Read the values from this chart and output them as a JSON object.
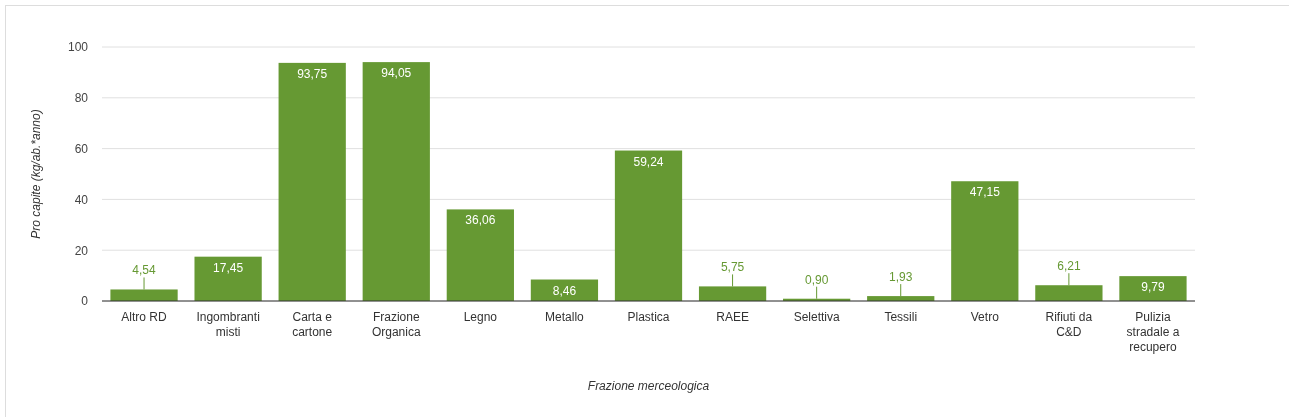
{
  "chart_data": {
    "type": "bar",
    "xlabel": "Frazione merceologica",
    "ylabel": "Pro capite (kg/ab.*anno)",
    "categories": [
      "Altro RD",
      "Ingombranti misti",
      "Carta e cartone",
      "Frazione Organica",
      "Legno",
      "Metallo",
      "Plastica",
      "RAEE",
      "Selettiva",
      "Tessili",
      "Vetro",
      "Rifiuti da C&D",
      "Pulizia stradale a recupero"
    ],
    "values": [
      4.54,
      17.45,
      93.75,
      94.05,
      36.06,
      8.46,
      59.24,
      5.75,
      0.9,
      1.93,
      47.15,
      6.21,
      9.79
    ],
    "value_labels": [
      "4,54",
      "17,45",
      "93,75",
      "94,05",
      "36,06",
      "8,46",
      "59,24",
      "5,75",
      "0,90",
      "1,93",
      "47,15",
      "6,21",
      "9,79"
    ],
    "color": "#669933",
    "ylim": [
      0,
      100
    ],
    "yticks": [
      0,
      20,
      40,
      60,
      80,
      100
    ],
    "grid": "y"
  }
}
